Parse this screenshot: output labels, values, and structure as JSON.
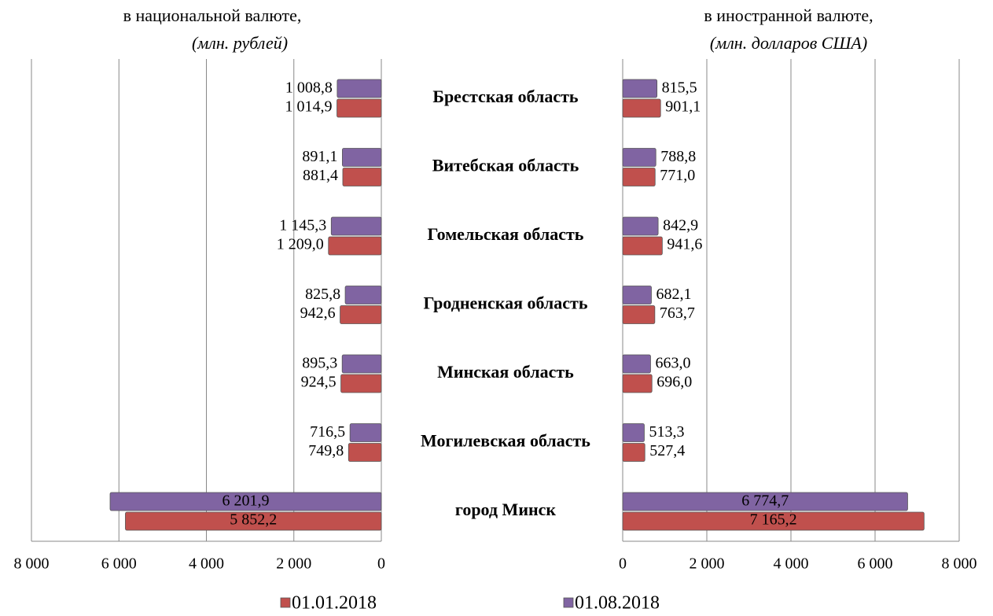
{
  "chart_data": {
    "type": "bar",
    "categories": [
      "Брестская область",
      "Витебская область",
      "Гомельская область",
      "Гродненская область",
      "Минская область",
      "Могилевская область",
      "город Минск"
    ],
    "series": [
      {
        "name": "01.01.2018",
        "color": "#c0504d",
        "left": [
          1014.9,
          881.4,
          1209.0,
          942.6,
          924.5,
          749.8,
          5852.2
        ],
        "left_value_labels": [
          "1 014,9",
          "881,4",
          "1 209,0",
          "942,6",
          "924,5",
          "749,8",
          "5 852,2"
        ],
        "right": [
          901.1,
          771.0,
          941.6,
          763.7,
          696.0,
          527.4,
          7165.2
        ],
        "right_value_labels": [
          "901,1",
          "771,0",
          "941,6",
          "763,7",
          "696,0",
          "527,4",
          "7 165,2"
        ]
      },
      {
        "name": "01.08.2018",
        "color": "#8064a2",
        "left": [
          1008.8,
          891.1,
          1145.3,
          825.8,
          895.3,
          716.5,
          6201.9
        ],
        "left_value_labels": [
          "1 008,8",
          "891,1",
          "1 145,3",
          "825,8",
          "895,3",
          "716,5",
          "6 201,9"
        ],
        "right": [
          815.5,
          788.8,
          842.9,
          682.1,
          663.0,
          513.3,
          6774.7
        ],
        "right_value_labels": [
          "815,5",
          "788,8",
          "842,9",
          "682,1",
          "663,0",
          "513,3",
          "6 774,7"
        ]
      }
    ],
    "left": {
      "title": "в национальной валюте,",
      "subtitle": "(млн. рублей)",
      "xlim": [
        8000,
        0
      ],
      "xticks": [
        {
          "value": 8000,
          "label": "8 000"
        },
        {
          "value": 6000,
          "label": "6 000"
        },
        {
          "value": 4000,
          "label": "4 000"
        },
        {
          "value": 2000,
          "label": "2 000"
        },
        0
      ]
    },
    "right": {
      "title": "в иностранной валюте,",
      "subtitle": "(млн. долларов США)",
      "xlim": [
        0,
        8000
      ],
      "xticks": [
        0,
        {
          "value": 2000,
          "label": "2 000"
        },
        {
          "value": 4000,
          "label": "4 000"
        },
        {
          "value": 6000,
          "label": "6 000"
        },
        {
          "value": 8000,
          "label": "8 000"
        }
      ]
    },
    "grid": true
  }
}
